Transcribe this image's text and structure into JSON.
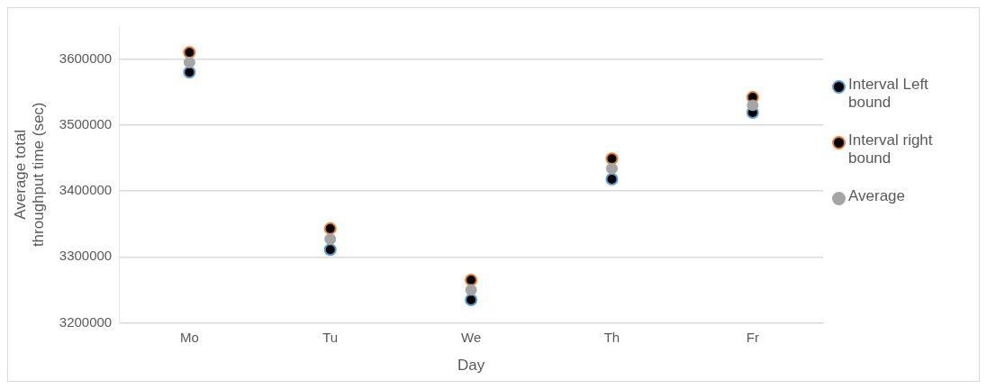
{
  "chart_data": {
    "type": "scatter",
    "xlabel": "Day",
    "ylabel": "Average total throughput time (sec)",
    "categories": [
      "Mo",
      "Tu",
      "We",
      "Th",
      "Fr"
    ],
    "series": [
      {
        "name": "Interval Left bound",
        "color": "#5b9bd5",
        "values": [
          3580000,
          3311000,
          3235000,
          3418000,
          3519000
        ]
      },
      {
        "name": "Interval right bound",
        "color": "#ed7d31",
        "values": [
          3610000,
          3343000,
          3265000,
          3449000,
          3542000
        ]
      },
      {
        "name": "Average",
        "color": "#a5a5a5",
        "values": [
          3595000,
          3327000,
          3250000,
          3434000,
          3530000
        ]
      }
    ],
    "ylim": [
      3200000,
      3650000
    ],
    "yticks": [
      3200000,
      3300000,
      3400000,
      3500000,
      3600000
    ],
    "grid": "y",
    "legend": "right",
    "marker": "circle"
  }
}
